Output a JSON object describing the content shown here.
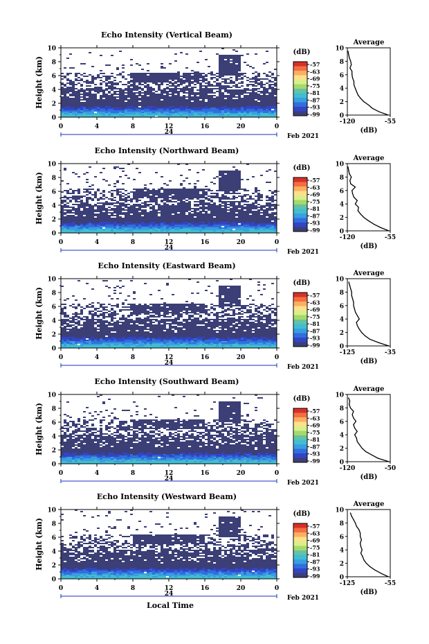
{
  "page": {
    "bottom_axis_label": "Local Time"
  },
  "chart_data": [
    {
      "type": "heatmap",
      "title": "Echo Intensity (Vertical Beam)",
      "ylabel": "Height (km)",
      "xticks": [
        "0",
        "4",
        "8",
        "12",
        "16",
        "20",
        "0"
      ],
      "xlim": [
        0,
        24
      ],
      "ylim": [
        0,
        10
      ],
      "yticks": [
        "0",
        "2",
        "4",
        "6",
        "8",
        "10"
      ],
      "date_day": "24",
      "date_month": "Feb 2021",
      "colorbar": {
        "label": "(dB)",
        "ticks": [
          "-57",
          "-63",
          "-69",
          "-75",
          "-81",
          "-87",
          "-93",
          "-99"
        ]
      },
      "profile": {
        "title": "Average",
        "xlabel": "(dB)",
        "xticks": [
          "-120",
          "-55"
        ],
        "xlim": [
          -120,
          -55
        ],
        "heights": [
          0,
          0.5,
          1,
          1.5,
          2,
          2.5,
          3,
          3.5,
          4,
          4.5,
          5,
          5.5,
          6,
          6.5,
          7,
          7.5,
          8,
          8.5,
          9,
          9.5
        ],
        "values": [
          -58,
          -72,
          -82,
          -88,
          -95,
          -100,
          -104,
          -106,
          -108,
          -110,
          -110,
          -112,
          -113,
          -113,
          -116,
          -114,
          -115,
          -117,
          -118,
          -119
        ]
      }
    },
    {
      "type": "heatmap",
      "title": "Echo Intensity (Northward Beam)",
      "ylabel": "Height (km)",
      "xticks": [
        "0",
        "4",
        "8",
        "12",
        "16",
        "20",
        "0"
      ],
      "xlim": [
        0,
        24
      ],
      "ylim": [
        0,
        10
      ],
      "yticks": [
        "0",
        "2",
        "4",
        "6",
        "8",
        "10"
      ],
      "date_day": "24",
      "date_month": "Feb 2021",
      "colorbar": {
        "label": "(dB)",
        "ticks": [
          "-57",
          "-63",
          "-69",
          "-75",
          "-81",
          "-87",
          "-93",
          "-99"
        ]
      },
      "profile": {
        "title": "Average",
        "xlabel": "(dB)",
        "xticks": [
          "-120",
          "-55"
        ],
        "xlim": [
          -120,
          -55
        ],
        "heights": [
          0,
          0.5,
          1,
          1.5,
          2,
          2.5,
          3,
          3.5,
          4,
          4.5,
          5,
          5.5,
          6,
          6.5,
          7,
          7.5,
          8,
          8.5,
          9,
          9.5
        ],
        "values": [
          -57,
          -70,
          -80,
          -88,
          -95,
          -100,
          -104,
          -103,
          -108,
          -105,
          -110,
          -112,
          -113,
          -108,
          -115,
          -116,
          -114,
          -117,
          -118,
          -119
        ]
      }
    },
    {
      "type": "heatmap",
      "title": "Echo Intensity (Eastward Beam)",
      "ylabel": "Height (km)",
      "xticks": [
        "0",
        "4",
        "8",
        "12",
        "16",
        "20",
        "0"
      ],
      "xlim": [
        0,
        24
      ],
      "ylim": [
        0,
        10
      ],
      "yticks": [
        "0",
        "2",
        "4",
        "6",
        "8",
        "10"
      ],
      "date_day": "24",
      "date_month": "Feb 2021",
      "colorbar": {
        "label": "(dB)",
        "ticks": [
          "-57",
          "-63",
          "-69",
          "-75",
          "-81",
          "-87",
          "-93",
          "-99"
        ]
      },
      "profile": {
        "title": "Average",
        "xlabel": "(dB)",
        "xticks": [
          "-125",
          "-35"
        ],
        "xlim": [
          -125,
          -35
        ],
        "heights": [
          0,
          0.5,
          1,
          1.5,
          2,
          2.5,
          3,
          3.5,
          4,
          4.5,
          5,
          5.5,
          6,
          6.5,
          7,
          7.5,
          8,
          8.5,
          9,
          9.5
        ],
        "values": [
          -38,
          -60,
          -78,
          -88,
          -95,
          -100,
          -104,
          -106,
          -100,
          -104,
          -108,
          -110,
          -112,
          -112,
          -114,
          -116,
          -116,
          -118,
          -120,
          -122
        ]
      }
    },
    {
      "type": "heatmap",
      "title": "Echo Intensity (Southward Beam)",
      "ylabel": "Height (km)",
      "xticks": [
        "0",
        "4",
        "8",
        "12",
        "16",
        "20",
        "0"
      ],
      "xlim": [
        0,
        24
      ],
      "ylim": [
        0,
        10
      ],
      "yticks": [
        "0",
        "2",
        "4",
        "6",
        "8",
        "10"
      ],
      "date_day": "24",
      "date_month": "Feb 2021",
      "colorbar": {
        "label": "(dB)",
        "ticks": [
          "-57",
          "-63",
          "-69",
          "-75",
          "-81",
          "-87",
          "-93",
          "-99"
        ]
      },
      "profile": {
        "title": "Average",
        "xlabel": "(dB)",
        "xticks": [
          "-120",
          "-50"
        ],
        "xlim": [
          -120,
          -50
        ],
        "heights": [
          0,
          0.5,
          1,
          1.5,
          2,
          2.5,
          3,
          3.5,
          4,
          4.5,
          5,
          5.5,
          6,
          6.5,
          7,
          7.5,
          8,
          8.5,
          9,
          9.5
        ],
        "values": [
          -52,
          -70,
          -80,
          -90,
          -96,
          -100,
          -104,
          -105,
          -108,
          -104,
          -108,
          -110,
          -106,
          -110,
          -112,
          -110,
          -115,
          -117,
          -116,
          -118
        ]
      }
    },
    {
      "type": "heatmap",
      "title": "Echo Intensity (Westward Beam)",
      "ylabel": "Height (km)",
      "xticks": [
        "0",
        "4",
        "8",
        "12",
        "16",
        "20",
        "0"
      ],
      "xlim": [
        0,
        24
      ],
      "ylim": [
        0,
        10
      ],
      "yticks": [
        "0",
        "2",
        "4",
        "6",
        "8",
        "10"
      ],
      "date_day": "24",
      "date_month": "Feb 2021",
      "colorbar": {
        "label": "(dB)",
        "ticks": [
          "-57",
          "-63",
          "-69",
          "-75",
          "-81",
          "-87",
          "-93",
          "-99"
        ]
      },
      "profile": {
        "title": "Average",
        "xlabel": "(dB)",
        "xticks": [
          "-125",
          "-55"
        ],
        "xlim": [
          -125,
          -55
        ],
        "heights": [
          0,
          0.5,
          1,
          1.5,
          2,
          2.5,
          3,
          3.5,
          4,
          4.5,
          5,
          5.5,
          6,
          6.5,
          7,
          7.5,
          8,
          8.5,
          9,
          9.5
        ],
        "values": [
          -58,
          -70,
          -80,
          -88,
          -94,
          -98,
          -100,
          -103,
          -101,
          -103,
          -104,
          -102,
          -104,
          -104,
          -106,
          -110,
          -112,
          -115,
          -118,
          -120
        ]
      }
    }
  ]
}
